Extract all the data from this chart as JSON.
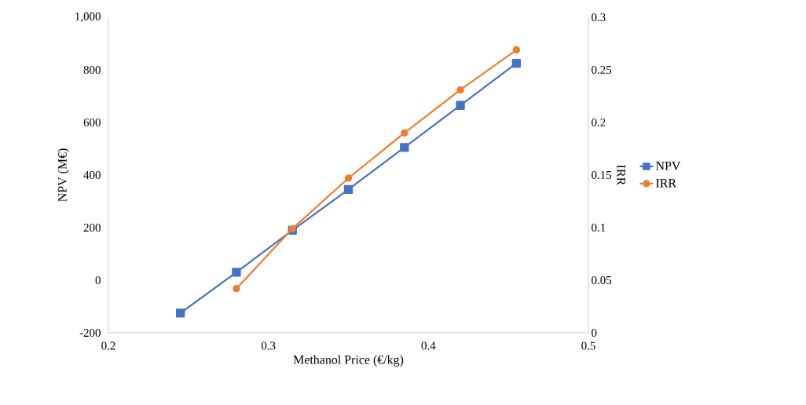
{
  "chart_data": {
    "type": "line",
    "xlabel": "Methanol Price (€/kg)",
    "ylabel": "NPV (M€)",
    "y2label": "IRR",
    "series": [
      {
        "name": "NPV",
        "color": "#4472c4",
        "marker": "square",
        "x": [
          0.245,
          0.28,
          0.315,
          0.35,
          0.385,
          0.42,
          0.455
        ],
        "values": [
          -125,
          30,
          190,
          345,
          505,
          665,
          825
        ]
      },
      {
        "name": "IRR",
        "color": "#ed7d31",
        "marker": "circle",
        "axis": "y2",
        "x": [
          0.28,
          0.315,
          0.35,
          0.385,
          0.42,
          0.455
        ],
        "values": [
          0.042,
          0.099,
          0.147,
          0.19,
          0.231,
          0.269
        ]
      }
    ],
    "xlim": [
      0.2,
      0.5
    ],
    "xticks": [
      0.2,
      0.3,
      0.4,
      0.5
    ],
    "ylim": [
      -200,
      1000
    ],
    "yticks": [
      -200,
      0,
      200,
      400,
      600,
      {
        "value": 800,
        "label": "800"
      },
      {
        "value": 1000,
        "label": "1,000"
      }
    ],
    "y2lim": [
      0,
      0.3
    ],
    "y2ticks": [
      0,
      0.05,
      0.1,
      0.15,
      0.2,
      0.25,
      0.3
    ],
    "grid": false,
    "legend": "right"
  }
}
